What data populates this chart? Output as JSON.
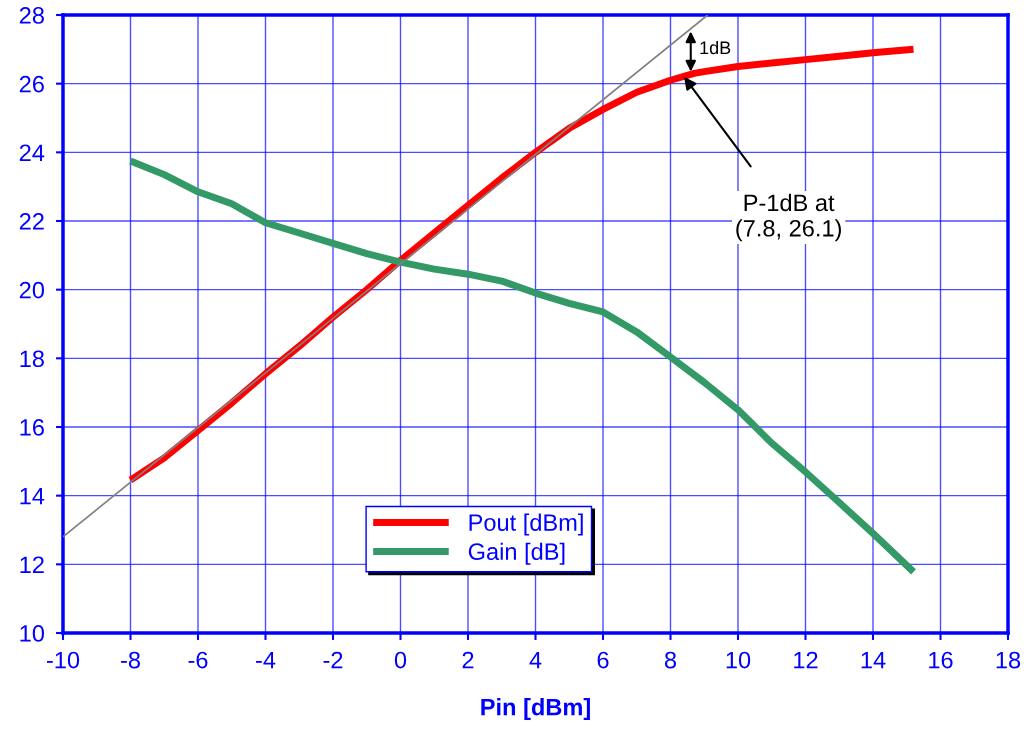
{
  "chart_data": {
    "type": "line",
    "xlabel": "Pin [dBm]",
    "xlim": [
      -10,
      18
    ],
    "xticks": [
      -10,
      -8,
      -6,
      -4,
      -2,
      0,
      2,
      4,
      6,
      8,
      10,
      12,
      14,
      16,
      18
    ],
    "ylim": [
      10,
      28
    ],
    "yticks": [
      10,
      12,
      14,
      16,
      18,
      20,
      22,
      24,
      26,
      28
    ],
    "grid": true,
    "legend": "bottom",
    "series": [
      {
        "x": [
          -10,
          9.1
        ],
        "values": [
          12.8,
          28
        ],
        "color": "#808080"
      },
      {
        "name": "Pout [dBm]",
        "color": "#ff0000",
        "x": [
          -8,
          -7,
          -6,
          -5,
          -4,
          -3,
          -2,
          -1,
          0,
          1,
          2,
          3,
          4,
          5,
          6,
          7,
          8,
          8.7,
          9,
          10,
          11,
          12,
          13,
          14,
          15.2
        ],
        "values": [
          14.45,
          15.1,
          15.9,
          16.7,
          17.55,
          18.35,
          19.2,
          20.0,
          20.85,
          21.65,
          22.45,
          23.25,
          24.0,
          24.7,
          25.25,
          25.75,
          26.1,
          26.3,
          26.35,
          26.5,
          26.6,
          26.7,
          26.8,
          26.9,
          27.0
        ]
      },
      {
        "name": "Gain [dB]",
        "color": "#339966",
        "x": [
          -8,
          -7,
          -6,
          -5,
          -4,
          -3,
          -2,
          -1,
          0,
          1,
          2,
          3,
          4,
          5,
          6,
          7,
          8,
          9,
          10,
          11,
          12,
          13,
          14,
          15.2
        ],
        "values": [
          23.75,
          23.35,
          22.85,
          22.5,
          21.95,
          21.65,
          21.35,
          21.05,
          20.8,
          20.6,
          20.45,
          20.25,
          19.9,
          19.6,
          19.35,
          18.77,
          18.04,
          17.3,
          16.5,
          15.53,
          14.69,
          13.8,
          12.9,
          11.78
        ]
      }
    ],
    "annotations": [
      {
        "text": "1dB",
        "x": 8.6,
        "y": 26.27
      },
      {
        "text": "P-1dB at\n(7.8, 26.1)",
        "x": 8.4,
        "y": 26.2
      }
    ]
  }
}
